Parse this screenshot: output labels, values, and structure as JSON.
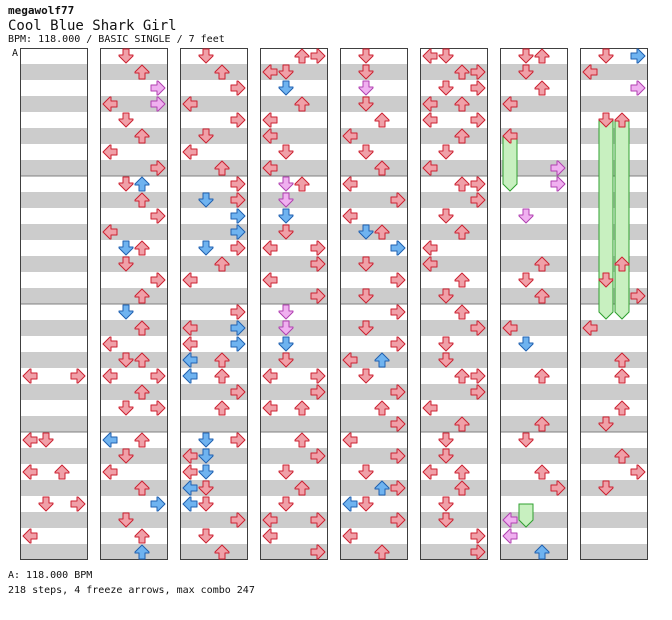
{
  "header": {
    "author": "megawolf77",
    "title": "Cool Blue Shark Girl",
    "meta": "BPM: 118.000 / BASIC SINGLE / 7 feet",
    "section_marker": "A"
  },
  "footer": {
    "bpm_line": "A: 118.000 BPM",
    "stats_line": "218 steps, 4 freeze arrows, max combo 247"
  },
  "stats": {
    "steps": 218,
    "freeze_arrows": 4,
    "max_combo": 247,
    "bpm": 118.0,
    "feet": 7
  },
  "colors": {
    "red": "#f0a0a8",
    "blue": "#6fb3f0",
    "pink": "#f0b0f0",
    "freeze": "#c8f0c0",
    "stripe": "#cccccc"
  },
  "notes": [
    [
      [
        20,
        0,
        "r"
      ],
      [
        20,
        3,
        "r"
      ],
      [
        24,
        0,
        "r"
      ],
      [
        24,
        1,
        "r"
      ],
      [
        26,
        0,
        "r"
      ],
      [
        26,
        2,
        "r"
      ],
      [
        28,
        1,
        "r"
      ],
      [
        28,
        3,
        "r"
      ],
      [
        30,
        0,
        "r"
      ]
    ],
    [
      [
        0,
        1,
        "r"
      ],
      [
        1,
        2,
        "r"
      ],
      [
        2,
        3,
        "p"
      ],
      [
        3,
        0,
        "r"
      ],
      [
        3,
        3,
        "p"
      ],
      [
        4,
        1,
        "r"
      ],
      [
        5,
        2,
        "r"
      ],
      [
        6,
        0,
        "r"
      ],
      [
        7,
        3,
        "r"
      ],
      [
        8,
        1,
        "r"
      ],
      [
        8,
        2,
        "b"
      ],
      [
        9,
        2,
        "r"
      ],
      [
        10,
        3,
        "r"
      ],
      [
        11,
        0,
        "r"
      ],
      [
        12,
        1,
        "b"
      ],
      [
        12,
        2,
        "r"
      ],
      [
        13,
        1,
        "r"
      ],
      [
        14,
        3,
        "r"
      ],
      [
        15,
        2,
        "r"
      ],
      [
        16,
        1,
        "b"
      ],
      [
        17,
        2,
        "r"
      ],
      [
        18,
        0,
        "r"
      ],
      [
        19,
        1,
        "r"
      ],
      [
        19,
        2,
        "r"
      ],
      [
        20,
        0,
        "r"
      ],
      [
        20,
        3,
        "r"
      ],
      [
        21,
        2,
        "r"
      ],
      [
        22,
        1,
        "r"
      ],
      [
        22,
        3,
        "r"
      ],
      [
        24,
        0,
        "b"
      ],
      [
        24,
        2,
        "r"
      ],
      [
        25,
        1,
        "r"
      ],
      [
        26,
        0,
        "r"
      ],
      [
        27,
        2,
        "r"
      ],
      [
        28,
        3,
        "b"
      ],
      [
        29,
        1,
        "r"
      ],
      [
        30,
        2,
        "r"
      ],
      [
        31,
        2,
        "b"
      ]
    ],
    [
      [
        0,
        1,
        "r"
      ],
      [
        1,
        2,
        "r"
      ],
      [
        2,
        3,
        "r"
      ],
      [
        3,
        0,
        "r"
      ],
      [
        4,
        3,
        "r"
      ],
      [
        5,
        1,
        "r"
      ],
      [
        6,
        0,
        "r"
      ],
      [
        7,
        2,
        "r"
      ],
      [
        8,
        3,
        "r"
      ],
      [
        9,
        1,
        "b"
      ],
      [
        9,
        3,
        "r"
      ],
      [
        10,
        3,
        "b"
      ],
      [
        11,
        3,
        "b"
      ],
      [
        12,
        1,
        "b"
      ],
      [
        12,
        3,
        "r"
      ],
      [
        13,
        2,
        "r"
      ],
      [
        14,
        0,
        "r"
      ],
      [
        16,
        3,
        "r"
      ],
      [
        17,
        0,
        "r"
      ],
      [
        17,
        3,
        "b"
      ],
      [
        18,
        0,
        "r"
      ],
      [
        18,
        3,
        "b"
      ],
      [
        19,
        0,
        "b"
      ],
      [
        19,
        2,
        "r"
      ],
      [
        20,
        0,
        "b"
      ],
      [
        20,
        2,
        "r"
      ],
      [
        21,
        3,
        "r"
      ],
      [
        22,
        2,
        "r"
      ],
      [
        24,
        1,
        "b"
      ],
      [
        24,
        3,
        "r"
      ],
      [
        25,
        0,
        "r"
      ],
      [
        25,
        1,
        "b"
      ],
      [
        26,
        0,
        "r"
      ],
      [
        26,
        1,
        "b"
      ],
      [
        27,
        0,
        "b"
      ],
      [
        27,
        1,
        "r"
      ],
      [
        28,
        0,
        "b"
      ],
      [
        28,
        1,
        "r"
      ],
      [
        29,
        3,
        "r"
      ],
      [
        30,
        1,
        "r"
      ],
      [
        31,
        2,
        "r"
      ]
    ],
    [
      [
        0,
        2,
        "r"
      ],
      [
        0,
        3,
        "r"
      ],
      [
        1,
        0,
        "r"
      ],
      [
        1,
        1,
        "r"
      ],
      [
        2,
        1,
        "b"
      ],
      [
        3,
        2,
        "r"
      ],
      [
        4,
        0,
        "r"
      ],
      [
        5,
        0,
        "r"
      ],
      [
        6,
        1,
        "r"
      ],
      [
        7,
        0,
        "r"
      ],
      [
        8,
        1,
        "p"
      ],
      [
        8,
        2,
        "r"
      ],
      [
        9,
        1,
        "p"
      ],
      [
        10,
        1,
        "b"
      ],
      [
        11,
        1,
        "r"
      ],
      [
        12,
        0,
        "r"
      ],
      [
        12,
        3,
        "r"
      ],
      [
        13,
        3,
        "r"
      ],
      [
        14,
        0,
        "r"
      ],
      [
        15,
        3,
        "r"
      ],
      [
        16,
        1,
        "p"
      ],
      [
        17,
        1,
        "p"
      ],
      [
        18,
        1,
        "b"
      ],
      [
        19,
        1,
        "r"
      ],
      [
        20,
        0,
        "r"
      ],
      [
        20,
        3,
        "r"
      ],
      [
        21,
        3,
        "r"
      ],
      [
        22,
        0,
        "r"
      ],
      [
        22,
        2,
        "r"
      ],
      [
        24,
        2,
        "r"
      ],
      [
        25,
        3,
        "r"
      ],
      [
        26,
        1,
        "r"
      ],
      [
        27,
        2,
        "r"
      ],
      [
        28,
        1,
        "r"
      ],
      [
        29,
        0,
        "r"
      ],
      [
        29,
        3,
        "r"
      ],
      [
        30,
        0,
        "r"
      ],
      [
        31,
        3,
        "r"
      ]
    ],
    [
      [
        0,
        1,
        "r"
      ],
      [
        1,
        1,
        "r"
      ],
      [
        2,
        1,
        "p"
      ],
      [
        3,
        1,
        "r"
      ],
      [
        4,
        2,
        "r"
      ],
      [
        5,
        0,
        "r"
      ],
      [
        6,
        1,
        "r"
      ],
      [
        7,
        2,
        "r"
      ],
      [
        8,
        0,
        "r"
      ],
      [
        9,
        3,
        "r"
      ],
      [
        10,
        0,
        "r"
      ],
      [
        11,
        1,
        "b"
      ],
      [
        11,
        2,
        "r"
      ],
      [
        12,
        3,
        "b"
      ],
      [
        13,
        1,
        "r"
      ],
      [
        14,
        3,
        "r"
      ],
      [
        15,
        1,
        "r"
      ],
      [
        16,
        3,
        "r"
      ],
      [
        17,
        1,
        "r"
      ],
      [
        18,
        3,
        "r"
      ],
      [
        19,
        0,
        "r"
      ],
      [
        19,
        2,
        "b"
      ],
      [
        20,
        1,
        "r"
      ],
      [
        21,
        3,
        "r"
      ],
      [
        22,
        2,
        "r"
      ],
      [
        23,
        3,
        "r"
      ],
      [
        24,
        0,
        "r"
      ],
      [
        25,
        3,
        "r"
      ],
      [
        26,
        1,
        "r"
      ],
      [
        27,
        2,
        "b"
      ],
      [
        27,
        3,
        "r"
      ],
      [
        28,
        0,
        "b"
      ],
      [
        28,
        1,
        "r"
      ],
      [
        29,
        3,
        "r"
      ],
      [
        30,
        0,
        "r"
      ],
      [
        31,
        2,
        "r"
      ]
    ],
    [
      [
        0,
        0,
        "r"
      ],
      [
        0,
        1,
        "r"
      ],
      [
        1,
        2,
        "r"
      ],
      [
        1,
        3,
        "r"
      ],
      [
        2,
        1,
        "r"
      ],
      [
        2,
        3,
        "r"
      ],
      [
        3,
        0,
        "r"
      ],
      [
        3,
        2,
        "r"
      ],
      [
        4,
        0,
        "r"
      ],
      [
        4,
        3,
        "r"
      ],
      [
        5,
        2,
        "r"
      ],
      [
        6,
        1,
        "r"
      ],
      [
        7,
        0,
        "r"
      ],
      [
        8,
        2,
        "r"
      ],
      [
        8,
        3,
        "r"
      ],
      [
        9,
        3,
        "r"
      ],
      [
        10,
        1,
        "r"
      ],
      [
        11,
        2,
        "r"
      ],
      [
        12,
        0,
        "r"
      ],
      [
        13,
        0,
        "r"
      ],
      [
        14,
        2,
        "r"
      ],
      [
        15,
        1,
        "r"
      ],
      [
        16,
        2,
        "r"
      ],
      [
        17,
        3,
        "r"
      ],
      [
        18,
        1,
        "r"
      ],
      [
        19,
        1,
        "r"
      ],
      [
        20,
        2,
        "r"
      ],
      [
        20,
        3,
        "r"
      ],
      [
        21,
        3,
        "r"
      ],
      [
        22,
        0,
        "r"
      ],
      [
        23,
        2,
        "r"
      ],
      [
        24,
        1,
        "r"
      ],
      [
        25,
        1,
        "r"
      ],
      [
        26,
        0,
        "r"
      ],
      [
        26,
        2,
        "r"
      ],
      [
        27,
        2,
        "r"
      ],
      [
        28,
        1,
        "r"
      ],
      [
        29,
        1,
        "r"
      ],
      [
        30,
        3,
        "r"
      ],
      [
        31,
        3,
        "r"
      ]
    ],
    [
      [
        0,
        1,
        "r"
      ],
      [
        0,
        2,
        "r"
      ],
      [
        1,
        1,
        "r"
      ],
      [
        2,
        2,
        "r"
      ],
      [
        3,
        0,
        "r"
      ],
      [
        5,
        0,
        "r"
      ],
      [
        7,
        3,
        "p"
      ],
      [
        8,
        3,
        "p"
      ],
      [
        10,
        1,
        "p"
      ],
      [
        13,
        2,
        "r"
      ],
      [
        14,
        1,
        "r"
      ],
      [
        15,
        2,
        "r"
      ],
      [
        17,
        0,
        "r"
      ],
      [
        18,
        1,
        "b"
      ],
      [
        20,
        2,
        "r"
      ],
      [
        23,
        2,
        "r"
      ],
      [
        24,
        1,
        "r"
      ],
      [
        26,
        2,
        "r"
      ],
      [
        27,
        3,
        "r"
      ],
      [
        29,
        0,
        "p"
      ],
      [
        30,
        0,
        "p"
      ],
      [
        31,
        2,
        "b"
      ]
    ],
    [
      [
        0,
        1,
        "r"
      ],
      [
        0,
        3,
        "b"
      ],
      [
        1,
        0,
        "r"
      ],
      [
        2,
        3,
        "p"
      ],
      [
        4,
        1,
        "r"
      ],
      [
        4,
        2,
        "r"
      ],
      [
        13,
        2,
        "r"
      ],
      [
        14,
        1,
        "r"
      ],
      [
        15,
        3,
        "r"
      ],
      [
        17,
        0,
        "r"
      ],
      [
        19,
        2,
        "r"
      ],
      [
        20,
        2,
        "r"
      ],
      [
        22,
        2,
        "r"
      ],
      [
        23,
        1,
        "r"
      ],
      [
        25,
        2,
        "r"
      ],
      [
        26,
        3,
        "r"
      ],
      [
        27,
        1,
        "r"
      ]
    ]
  ],
  "freezes": [
    [
      6,
      0,
      5,
      8
    ],
    [
      6,
      1,
      28,
      29
    ],
    [
      7,
      1,
      4,
      16
    ],
    [
      7,
      2,
      4,
      16
    ]
  ]
}
